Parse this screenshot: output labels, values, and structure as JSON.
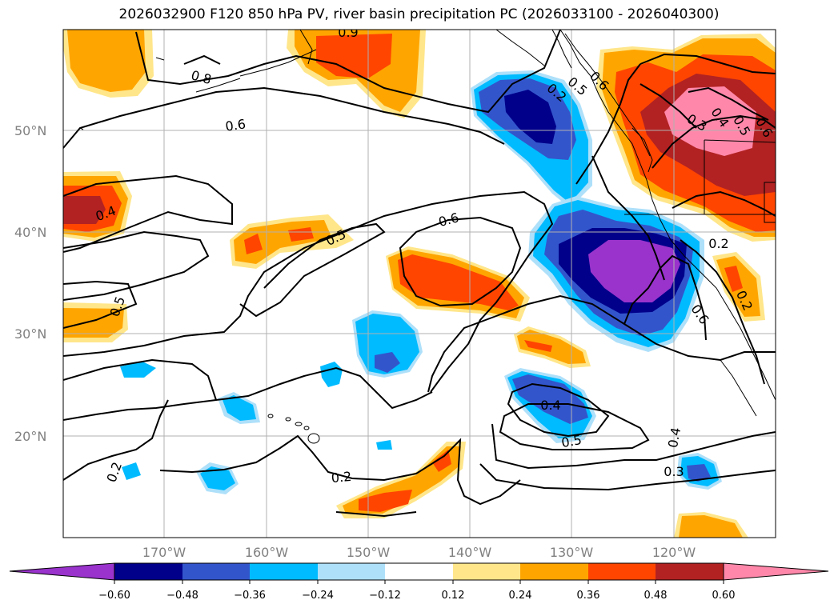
{
  "title": "2026032900 F120 850 hPa PV, river basin precipitation PC (2026033100 - 2026040300)",
  "lat_labels": [
    "50°N",
    "40°N",
    "30°N",
    "20°N"
  ],
  "lon_labels": [
    "170°W",
    "160°W",
    "150°W",
    "140°W",
    "130°W",
    "120°W"
  ],
  "contour_labels": [
    "0.9",
    "0.8",
    "0.6",
    "0.4",
    "0.5",
    "0.6",
    "0.5",
    "0.5",
    "0.2",
    "0.6",
    "0.3",
    "0.4",
    "0.5",
    "0.6",
    "0.2",
    "0.2",
    "0.4",
    "0.5",
    "0.4",
    "0.3",
    "0.2",
    "0.6"
  ],
  "colorbar": {
    "ticks": [
      "−0.60",
      "−0.48",
      "−0.36",
      "−0.24",
      "−0.12",
      "0.12",
      "0.24",
      "0.36",
      "0.48",
      "0.60"
    ],
    "colors": [
      "#9933cc",
      "#00008b",
      "#3355cc",
      "#00bbff",
      "#aee0fa",
      "#ffffff",
      "#ffe68a",
      "#ffa500",
      "#ff4500",
      "#b22222",
      "#ff88aa"
    ]
  },
  "palette": {
    "neg4": "#9933cc",
    "neg3": "#00008b",
    "neg2": "#3355cc",
    "neg1": "#00bbff",
    "neg0": "#aee0fa",
    "pos0": "#ffe68a",
    "pos1": "#ffa500",
    "pos2": "#ff4500",
    "pos3": "#b22222",
    "pos4": "#ff88aa"
  }
}
